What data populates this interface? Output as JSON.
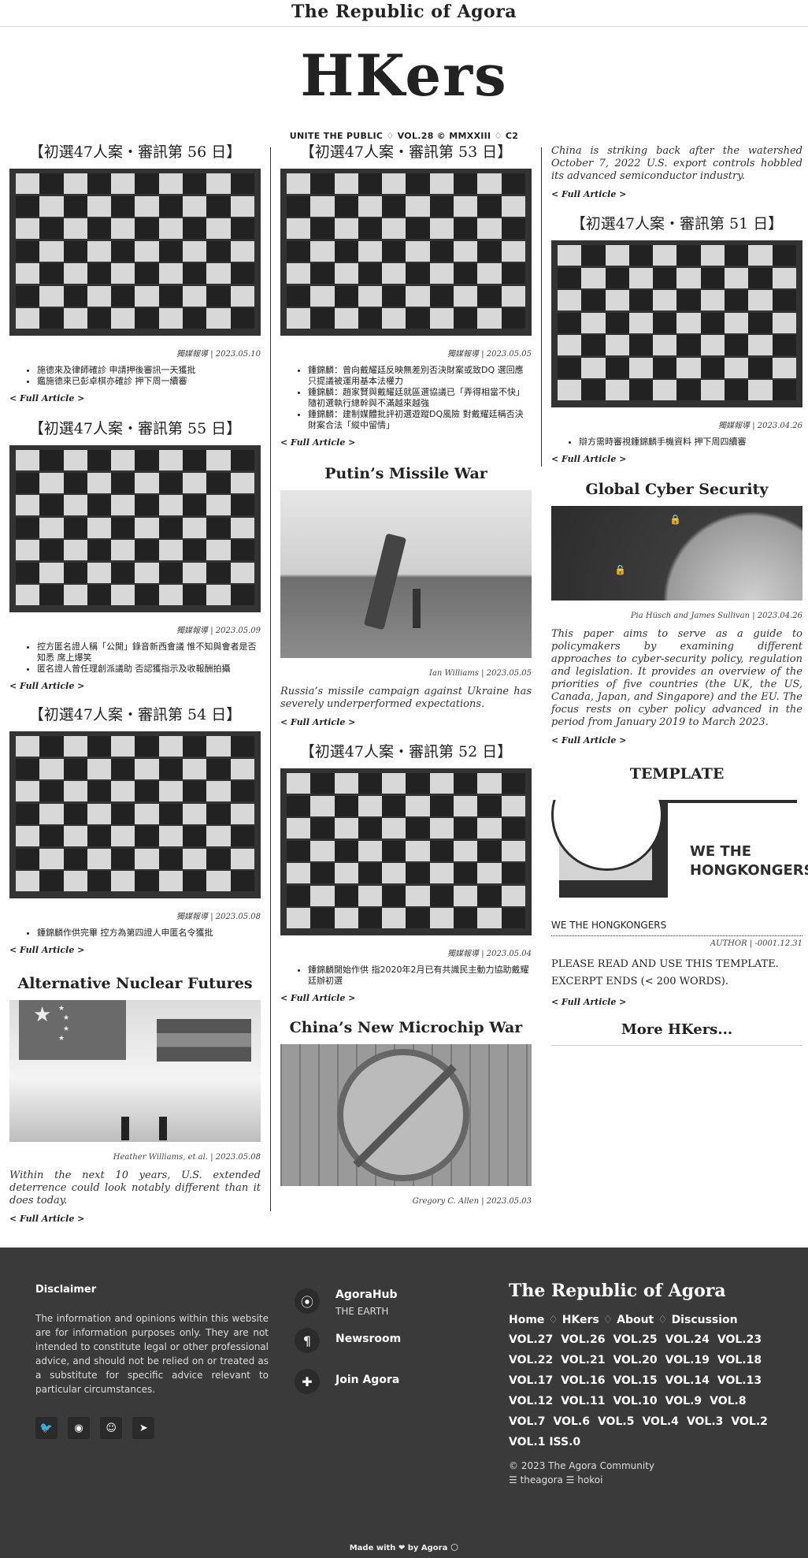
{
  "site": {
    "org_title": "The Republic of Agora",
    "masthead": "HKers",
    "tagline": "UNITE THE PUBLIC ♢ VOL.28 © MMXXIII ♢ C2",
    "more_link": "< Full Article >",
    "more_hkers": "More HKers..."
  },
  "column1": [
    {
      "title": "【初選47人案・審訊第 56 日】",
      "byline": "獨媒報導 | 2023.05.10",
      "bullets": [
        "施德來及律師確診 申請押後審訊一天獲批",
        "鑑施德來已彭卓棋亦確診 押下周一續審"
      ]
    },
    {
      "title": "【初選47人案・審訊第 55 日】",
      "byline": "獨媒報導 | 2023.05.09",
      "bullets": [
        "控方匿名證人稱「公開」錄音新西會議 惟不知與會者是否知悉 席上爆笑",
        "匿名證人曾任理創派議助 否認獲指示及收報酬拍攝"
      ]
    },
    {
      "title": "【初選47人案・審訊第 54 日】",
      "byline": "獨媒報導 | 2023.05.08",
      "bullets": [
        "鍾錦麟作供完畢 控方為第四證人申匿名令獲批"
      ]
    },
    {
      "title": "Alternative Nuclear Futures",
      "byline": "Heather Williams, et al. | 2023.05.08",
      "lede": "Within the next 10 years, U.S. extended deterrence could look notably different than it does today."
    }
  ],
  "column2": [
    {
      "title": "【初選47人案・審訊第 53 日】",
      "byline": "獨媒報導 | 2023.05.05",
      "bullets": [
        "鍾錦麟：曾向戴耀廷反映無差別否決財案或致DQ 選回應只提議被運用基本法權力",
        "鍾錦麟：趙家賢與戴耀廷就區選協議已「弄得相當不快」 隨初選執行總幹與不滿越來越強",
        "鍾錦麟：建制媒體批評初選遊蹤DQ風險 對戴耀廷稱否決財案合法「縱中留情」"
      ]
    },
    {
      "title": "Putin’s Missile War",
      "byline": "Ian Williams | 2023.05.05",
      "lede": "Russia’s missile campaign against Ukraine has severely underperformed expectations."
    },
    {
      "title": "【初選47人案・審訊第 52 日】",
      "byline": "獨媒報導 | 2023.05.04",
      "bullets": [
        "鍾錦麟開始作供 指2020年2月已有共識民主動力協助戴耀廷辦初選"
      ]
    },
    {
      "title": "China’s New Microchip War",
      "byline": "Gregory C. Allen | 2023.05.03"
    }
  ],
  "column3": [
    {
      "lede": "China is striking back after the watershed October 7, 2022 U.S. export controls hobbled its advanced semiconductor industry."
    },
    {
      "title": "【初選47人案・審訊第 51 日】",
      "byline": "獨媒報導 | 2023.04.26",
      "bullets": [
        "辯方需時審視鍾錦麟手機資料 押下周四續審"
      ]
    },
    {
      "title": "Global Cyber Security",
      "byline": "Pia Hüsch and James Sullivan | 2023.04.26",
      "lede": "This paper aims to serve as a guide to policymakers by examining different approaches to cyber-security policy, regulation and legislation. It provides an overview of the priorities of five countries (the UK, the US, Canada, Japan, and Singapore) and the EU. The focus rests on cyber policy advanced in the period from January 2019 to March 2023."
    },
    {
      "title": "TEMPLATE",
      "logo_line1": "WE THE",
      "logo_line2": "HONGKONGERS",
      "caption": "WE THE HONGKONGERS",
      "byline": "AUTHOR | -0001.12.31",
      "body1": "PLEASE READ AND USE THIS TEMPLATE.",
      "body2": "EXCERPT ENDS (< 200 WORDS)."
    }
  ],
  "footer": {
    "disclaimer_title": "Disclaimer",
    "disclaimer_text": "The information and opinions within this website are for information purposes only. They are not intended to constitute legal or other professional advice, and should not be relied on or treated as a substitute for specific advice relevant to particular circumstances.",
    "links": [
      {
        "label": "AgoraHub",
        "sub": "THE EARTH",
        "icon": "location-pin-icon"
      },
      {
        "label": "Newsroom",
        "sub": "",
        "icon": "pilcrow-icon"
      },
      {
        "label": "Join Agora",
        "sub": "",
        "icon": "puzzle-icon"
      }
    ],
    "brand": "The Republic of Agora",
    "nav": [
      "Home",
      "HKers",
      "About",
      "Discussion"
    ],
    "vols_row1": [
      "VOL.27",
      "VOL.26",
      "VOL.25",
      "VOL.24",
      "VOL.23"
    ],
    "vols_row2": [
      "VOL.22",
      "VOL.21",
      "VOL.20",
      "VOL.19",
      "VOL.18"
    ],
    "vols_row3": [
      "VOL.17",
      "VOL.16",
      "VOL.15",
      "VOL.14",
      "VOL.13"
    ],
    "vols_row4": [
      "VOL.12",
      "VOL.11",
      "VOL.10",
      "VOL.9",
      "VOL.8"
    ],
    "vols_row5": [
      "VOL.7",
      "VOL.6",
      "VOL.5",
      "VOL.4",
      "VOL.3",
      "VOL.2"
    ],
    "vols_row6": [
      "VOL.1 ISS.0"
    ],
    "copyright": "© 2023 The Agora Community",
    "handles": "☰ theagora ☰ hokoi",
    "made_with": "Made with ❤ by Agora 🌕",
    "social_icons": [
      "twitter-icon",
      "github-icon",
      "reddit-icon",
      "telegram-icon"
    ]
  }
}
